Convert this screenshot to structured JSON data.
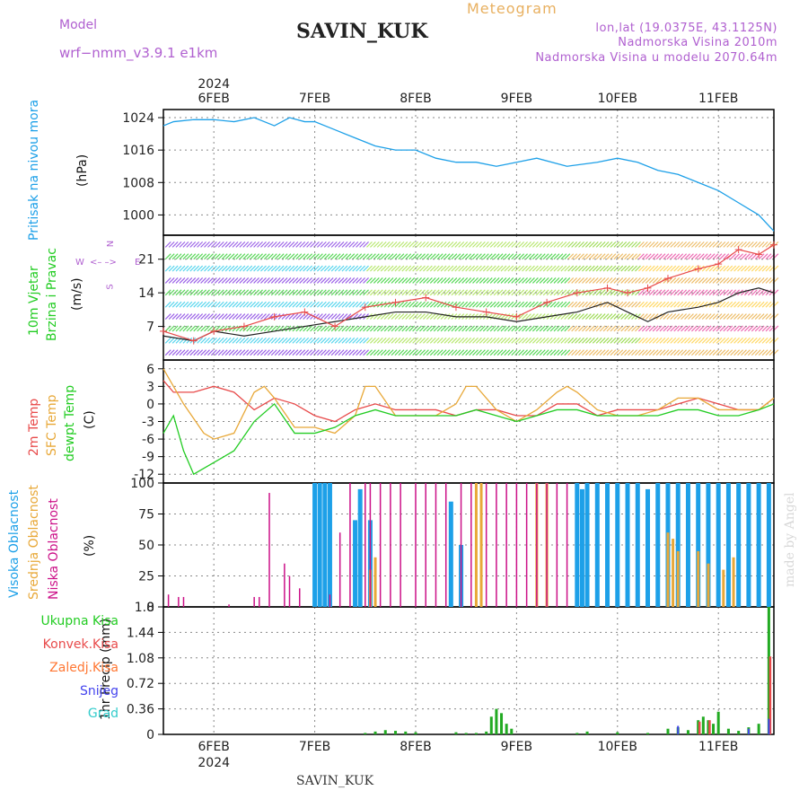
{
  "header": {
    "model_label": "Model",
    "model_name": "wrf−nmm_v3.9.1  e1km",
    "station": "SAVIN_KUK",
    "meteogram": "Meteogram",
    "lonlat": "lon,lat (19.0375E, 43.1125N)",
    "altitude": "Nadmorska Visina 2010m",
    "model_altitude": "Nadmorska Visina u modelu 2070.64m"
  },
  "footer": {
    "station": "SAVIN_KUK",
    "watermark": "made by Angel"
  },
  "time_axis": {
    "year": "2024",
    "labels": [
      "6FEB",
      "7FEB",
      "8FEB",
      "9FEB",
      "10FEB",
      "11FEB"
    ],
    "day_values": [
      0,
      1,
      2,
      3,
      4,
      5
    ],
    "range": [
      -0.5,
      5.55
    ]
  },
  "panel_labels": {
    "pressure": [
      "Pritisak na nivou mora",
      "(hPa)"
    ],
    "wind": [
      "10m Vjetar",
      "Brzina i Pravac",
      "(m/s)"
    ],
    "wind_compass": [
      "N",
      "S",
      "W",
      "E",
      "<– –>"
    ],
    "temp": [
      "2m Temp",
      "SFC Temp",
      "dewpt Temp",
      "(C)"
    ],
    "cloud": [
      "Visoka Oblacnost",
      "Srednja Oblacnost",
      "Niska Oblacnost",
      "(%)"
    ],
    "precip": [
      "Ukupna Kisa",
      "Konvek.Kisa",
      "Zaledj.Kisa",
      "Snijeg",
      "Grad",
      "1hr Precip (mm)"
    ]
  },
  "colors": {
    "pressure": "#1da0e8",
    "temp2m": "#e84a4a",
    "sfc": "#e8a838",
    "dewpt": "#22cc22",
    "cloud_high": "#1da0e8",
    "cloud_mid": "#e8a838",
    "cloud_low": "#cc1188",
    "precip_total": "#22aa22",
    "precip_conv": "#e84a4a",
    "precip_frz": "#ff7733",
    "snow": "#4444ee",
    "hail": "#33cccc",
    "wind_speed": "#222222",
    "wind_gust": "#e84a4a"
  },
  "chart_data": [
    {
      "type": "line",
      "title": "Pritisak na nivou mora",
      "ylabel": "(hPa)",
      "ylim": [
        995,
        1026
      ],
      "yticks": [
        1000,
        1008,
        1016,
        1024
      ],
      "grid": true,
      "series": [
        {
          "x": [
            -0.5,
            -0.4,
            -0.2,
            0.0,
            0.2,
            0.4,
            0.6,
            0.75,
            0.9,
            1.0,
            1.2,
            1.4,
            1.6,
            1.8,
            2.0,
            2.2,
            2.4,
            2.6,
            2.8,
            3.0,
            3.2,
            3.5,
            3.8,
            4.0,
            4.2,
            4.4,
            4.6,
            4.8,
            5.0,
            5.2,
            5.4,
            5.55
          ],
          "y": [
            1022,
            1023,
            1023.5,
            1023.5,
            1023,
            1024,
            1022,
            1024,
            1023,
            1023,
            1021,
            1019,
            1017,
            1016,
            1016,
            1014,
            1013,
            1013,
            1012,
            1013,
            1014,
            1012,
            1013,
            1014,
            1013,
            1011,
            1010,
            1008,
            1006,
            1003,
            1000,
            996
          ]
        }
      ]
    },
    {
      "type": "line",
      "title": "10m Vjetar Brzina i Pravac",
      "ylabel": "(m/s)",
      "ylim": [
        0,
        26
      ],
      "yticks": [
        7,
        14,
        21
      ],
      "grid": true,
      "series": [
        {
          "x": [
            -0.5,
            -0.2,
            0.0,
            0.3,
            0.6,
            0.9,
            1.2,
            1.5,
            1.8,
            2.1,
            2.4,
            2.7,
            3.0,
            3.3,
            3.6,
            3.9,
            4.1,
            4.3,
            4.5,
            4.8,
            5.0,
            5.2,
            5.4,
            5.55
          ],
          "y": [
            5,
            4,
            6,
            5,
            6,
            7,
            8,
            9,
            10,
            10,
            9,
            9,
            8,
            9,
            10,
            12,
            10,
            8,
            10,
            11,
            12,
            14,
            15,
            14
          ]
        },
        {
          "x": [
            -0.5,
            -0.2,
            0.0,
            0.3,
            0.6,
            0.9,
            1.2,
            1.5,
            1.8,
            2.1,
            2.4,
            2.7,
            3.0,
            3.3,
            3.6,
            3.9,
            4.1,
            4.3,
            4.5,
            4.8,
            5.0,
            5.2,
            5.4,
            5.55
          ],
          "y": [
            6,
            4,
            6,
            7,
            9,
            10,
            7,
            11,
            12,
            13,
            11,
            10,
            9,
            12,
            14,
            15,
            14,
            15,
            17,
            19,
            20,
            23,
            22,
            24
          ]
        }
      ]
    },
    {
      "type": "line",
      "title": "Temp",
      "ylabel": "(C)",
      "ylim": [
        -13.5,
        7.5
      ],
      "yticks": [
        -12,
        -9,
        -6,
        -3,
        0,
        3,
        6
      ],
      "grid": true,
      "series": [
        {
          "name": "2m Temp",
          "x": [
            -0.5,
            -0.4,
            -0.2,
            0.0,
            0.2,
            0.4,
            0.6,
            0.8,
            1.0,
            1.2,
            1.4,
            1.6,
            1.8,
            2.0,
            2.2,
            2.4,
            2.6,
            2.8,
            3.0,
            3.2,
            3.4,
            3.6,
            3.8,
            4.0,
            4.2,
            4.4,
            4.6,
            4.8,
            5.0,
            5.2,
            5.4,
            5.55
          ],
          "y": [
            4,
            2,
            2,
            3,
            2,
            -1,
            1,
            0,
            -2,
            -3,
            -1,
            0,
            -1,
            -1,
            -1,
            -2,
            -1,
            -1,
            -2,
            -2,
            0,
            0,
            -2,
            -1,
            -1,
            -1,
            0,
            1,
            0,
            -1,
            -1,
            1
          ]
        },
        {
          "name": "SFC Temp",
          "x": [
            -0.5,
            -0.3,
            -0.1,
            0.0,
            0.2,
            0.4,
            0.5,
            0.6,
            0.8,
            1.0,
            1.2,
            1.4,
            1.5,
            1.6,
            1.8,
            2.0,
            2.2,
            2.4,
            2.5,
            2.6,
            2.8,
            3.0,
            3.2,
            3.4,
            3.5,
            3.6,
            3.8,
            4.0,
            4.2,
            4.4,
            4.6,
            4.8,
            5.0,
            5.2,
            5.4,
            5.55
          ],
          "y": [
            6,
            0,
            -5,
            -6,
            -5,
            2,
            3,
            1,
            -4,
            -4,
            -5,
            -2,
            3,
            3,
            -2,
            -2,
            -2,
            0,
            3,
            3,
            -1,
            -3,
            -1,
            2,
            3,
            2,
            -1,
            -2,
            -2,
            -1,
            1,
            1,
            -1,
            -1,
            -1,
            1
          ]
        },
        {
          "name": "dewpt Temp",
          "x": [
            -0.5,
            -0.4,
            -0.3,
            -0.2,
            -0.1,
            0.0,
            0.1,
            0.2,
            0.4,
            0.6,
            0.8,
            1.0,
            1.2,
            1.4,
            1.6,
            1.8,
            2.0,
            2.2,
            2.4,
            2.6,
            2.8,
            3.0,
            3.2,
            3.4,
            3.6,
            3.8,
            4.0,
            4.2,
            4.4,
            4.6,
            4.8,
            5.0,
            5.2,
            5.4,
            5.55
          ],
          "y": [
            -5,
            -2,
            -8,
            -12,
            -11,
            -10,
            -9,
            -8,
            -3,
            0,
            -5,
            -5,
            -4,
            -2,
            -1,
            -2,
            -2,
            -2,
            -2,
            -1,
            -2,
            -3,
            -2,
            -1,
            -1,
            -2,
            -2,
            -2,
            -2,
            -1,
            -1,
            -2,
            -2,
            -1,
            0
          ]
        }
      ]
    },
    {
      "type": "bar",
      "title": "Oblacnost",
      "ylabel": "(%)",
      "ylim": [
        0,
        100
      ],
      "yticks": [
        0,
        25,
        50,
        75,
        100
      ],
      "grid": true,
      "series": [
        {
          "name": "Visoka Oblacnost",
          "x": [
            1.0,
            1.05,
            1.1,
            1.15,
            1.4,
            1.45,
            1.55,
            2.35,
            2.45,
            3.6,
            3.65,
            3.7,
            3.8,
            3.9,
            4.0,
            4.1,
            4.2,
            4.3,
            4.4,
            4.5,
            4.6,
            4.7,
            4.8,
            4.9,
            5.0,
            5.1,
            5.2,
            5.3,
            5.4,
            5.5
          ],
          "y": [
            100,
            100,
            100,
            100,
            70,
            95,
            70,
            85,
            50,
            100,
            95,
            100,
            100,
            100,
            100,
            100,
            100,
            95,
            100,
            100,
            100,
            100,
            100,
            100,
            100,
            100,
            100,
            100,
            100,
            100
          ]
        },
        {
          "name": "Srednja Oblacnost",
          "x": [
            1.55,
            1.6,
            2.6,
            2.65,
            3.2,
            3.3,
            4.5,
            4.55,
            4.6,
            4.8,
            4.9,
            5.05,
            5.15
          ],
          "y": [
            30,
            40,
            100,
            100,
            100,
            100,
            60,
            55,
            45,
            45,
            35,
            30,
            40
          ]
        },
        {
          "name": "Niska Oblacnost",
          "x": [
            -0.45,
            -0.35,
            -0.3,
            0.15,
            0.4,
            0.45,
            0.55,
            0.7,
            0.75,
            0.85,
            1.15,
            1.25,
            1.35,
            1.5,
            1.55,
            1.65,
            1.75,
            1.85,
            2.0,
            2.1,
            2.2,
            2.3,
            2.45,
            2.55,
            2.7,
            2.8,
            2.9,
            3.0,
            3.1,
            3.2,
            3.3,
            3.4,
            3.5
          ],
          "y": [
            10,
            8,
            8,
            2,
            8,
            8,
            92,
            35,
            25,
            15,
            10,
            60,
            100,
            100,
            100,
            100,
            100,
            100,
            100,
            100,
            100,
            100,
            100,
            100,
            100,
            100,
            100,
            100,
            100,
            100,
            100,
            100,
            100
          ]
        }
      ]
    },
    {
      "type": "bar",
      "title": "1hr Precip",
      "ylabel": "(mm)",
      "ylim": [
        0,
        1.8
      ],
      "yticks": [
        0,
        0.36,
        0.72,
        1.08,
        1.44,
        1.8
      ],
      "grid": true,
      "series": [
        {
          "name": "Ukupna Kisa",
          "x": [
            1.5,
            1.6,
            1.7,
            1.8,
            1.9,
            2.0,
            2.4,
            2.5,
            2.6,
            2.7,
            2.75,
            2.8,
            2.85,
            2.9,
            2.95,
            3.6,
            3.7,
            4.0,
            4.3,
            4.5,
            4.6,
            4.7,
            4.8,
            4.85,
            4.9,
            4.95,
            5.0,
            5.1,
            5.2,
            5.3,
            5.4,
            5.5
          ],
          "y": [
            0.02,
            0.04,
            0.06,
            0.05,
            0.04,
            0.03,
            0.03,
            0.02,
            0.02,
            0.04,
            0.25,
            0.36,
            0.3,
            0.15,
            0.08,
            0.02,
            0.04,
            0.03,
            0.02,
            0.08,
            0.1,
            0.06,
            0.2,
            0.25,
            0.2,
            0.15,
            0.32,
            0.08,
            0.05,
            0.1,
            0.15,
            1.8
          ]
        },
        {
          "name": "Konvek.Kisa",
          "x": [
            4.8,
            4.9,
            5.5
          ],
          "y": [
            0.18,
            0.2,
            1.1
          ]
        },
        {
          "name": "Snijeg",
          "x": [
            4.6,
            5.3,
            5.5
          ],
          "y": [
            0.12,
            0.08,
            0.22
          ]
        }
      ]
    }
  ]
}
